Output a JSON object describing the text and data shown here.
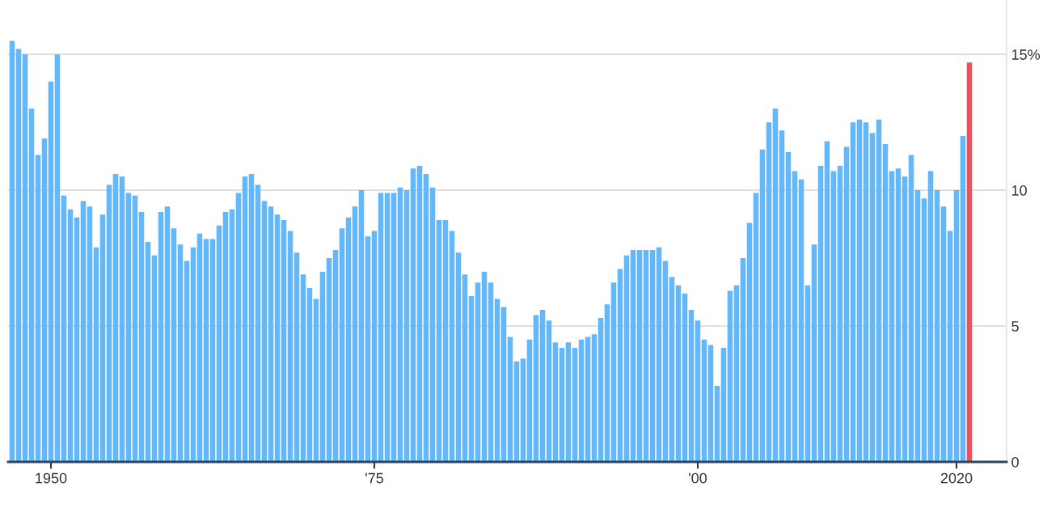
{
  "chart_data": {
    "type": "bar",
    "categories": [
      null,
      null,
      null,
      null,
      null,
      null,
      "1950",
      null,
      null,
      null,
      null,
      null,
      null,
      null,
      null,
      null,
      null,
      null,
      null,
      null,
      null,
      null,
      null,
      null,
      null,
      null,
      null,
      null,
      null,
      null,
      null,
      null,
      null,
      null,
      null,
      null,
      null,
      null,
      null,
      null,
      null,
      null,
      null,
      null,
      null,
      null,
      null,
      null,
      null,
      null,
      null,
      null,
      null,
      null,
      null,
      null,
      "'75",
      null,
      null,
      null,
      null,
      null,
      null,
      null,
      null,
      null,
      null,
      null,
      null,
      null,
      null,
      null,
      null,
      null,
      null,
      null,
      null,
      null,
      null,
      null,
      null,
      null,
      null,
      null,
      null,
      null,
      null,
      null,
      null,
      null,
      null,
      null,
      null,
      null,
      null,
      null,
      null,
      null,
      null,
      null,
      null,
      null,
      null,
      null,
      null,
      null,
      "'00",
      null,
      null,
      null,
      null,
      null,
      null,
      null,
      null,
      null,
      null,
      null,
      null,
      null,
      null,
      null,
      null,
      null,
      null,
      null,
      null,
      null,
      null,
      null,
      null,
      null,
      null,
      null,
      null,
      null,
      null,
      null,
      null,
      null,
      null,
      null,
      null,
      null,
      null,
      null,
      "2020",
      null,
      null
    ],
    "series": [
      {
        "color": "#64b8f8",
        "values": [
          15.5,
          15.2,
          15.0,
          13.0,
          11.3,
          11.9,
          14.0,
          15.0,
          9.8,
          9.3,
          9.0,
          9.6,
          9.4,
          7.9,
          9.1,
          10.2,
          10.6,
          10.5,
          9.9,
          9.8,
          9.2,
          8.1,
          7.6,
          9.2,
          9.4,
          8.6,
          8.0,
          7.4,
          7.9,
          8.4,
          8.2,
          8.2,
          8.7,
          9.2,
          9.3,
          9.9,
          10.5,
          10.6,
          10.2,
          9.6,
          9.4,
          9.1,
          8.9,
          8.5,
          7.7,
          6.9,
          6.4,
          6.0,
          7.0,
          7.5,
          7.8,
          8.6,
          9.0,
          9.4,
          10.0,
          8.3,
          8.5,
          9.9,
          9.9,
          9.9,
          10.1,
          10.0,
          10.8,
          10.9,
          10.6,
          10.1,
          8.9,
          8.9,
          8.5,
          7.7,
          6.9,
          6.1,
          6.6,
          7.0,
          6.6,
          6.0,
          5.7,
          4.6,
          3.7,
          3.8,
          4.5,
          5.4,
          5.6,
          5.2,
          4.4,
          4.2,
          4.4,
          4.2,
          4.5,
          4.6,
          4.7,
          5.3,
          5.8,
          6.6,
          7.1,
          7.6,
          7.8,
          7.8,
          7.8,
          7.8,
          7.9,
          7.4,
          6.8,
          6.5,
          6.2,
          5.6,
          5.2,
          4.5,
          4.3,
          2.8,
          4.2,
          6.3,
          6.5,
          7.5,
          8.8,
          9.9,
          11.5,
          12.5,
          13.0,
          12.2,
          11.4,
          10.7,
          10.4,
          6.5,
          8.0,
          10.9,
          11.8,
          10.7,
          10.9,
          11.6,
          12.5,
          12.6,
          12.5,
          12.1,
          12.6,
          11.7,
          10.7,
          10.8,
          10.5,
          11.3,
          10.0,
          9.7,
          10.7,
          10.0,
          9.4,
          8.5,
          10.0,
          12.0,
          null
        ]
      },
      {
        "color": "#e8535f",
        "values": [
          null,
          null,
          null,
          null,
          null,
          null,
          null,
          null,
          null,
          null,
          null,
          null,
          null,
          null,
          null,
          null,
          null,
          null,
          null,
          null,
          null,
          null,
          null,
          null,
          null,
          null,
          null,
          null,
          null,
          null,
          null,
          null,
          null,
          null,
          null,
          null,
          null,
          null,
          null,
          null,
          null,
          null,
          null,
          null,
          null,
          null,
          null,
          null,
          null,
          null,
          null,
          null,
          null,
          null,
          null,
          null,
          null,
          null,
          null,
          null,
          null,
          null,
          null,
          null,
          null,
          null,
          null,
          null,
          null,
          null,
          null,
          null,
          null,
          null,
          null,
          null,
          null,
          null,
          null,
          null,
          null,
          null,
          null,
          null,
          null,
          null,
          null,
          null,
          null,
          null,
          null,
          null,
          null,
          null,
          null,
          null,
          null,
          null,
          null,
          null,
          null,
          null,
          null,
          null,
          null,
          null,
          null,
          null,
          null,
          null,
          null,
          null,
          null,
          null,
          null,
          null,
          null,
          null,
          null,
          null,
          null,
          null,
          null,
          null,
          null,
          null,
          null,
          null,
          null,
          null,
          null,
          null,
          null,
          null,
          null,
          null,
          null,
          null,
          null,
          null,
          null,
          null,
          null,
          null,
          null,
          null,
          null,
          null,
          14.7
        ]
      }
    ],
    "ylim": [
      0,
      17
    ],
    "yticks": [
      0,
      5,
      10,
      {
        "value": 15,
        "label": "15%"
      }
    ],
    "grid": "y"
  }
}
